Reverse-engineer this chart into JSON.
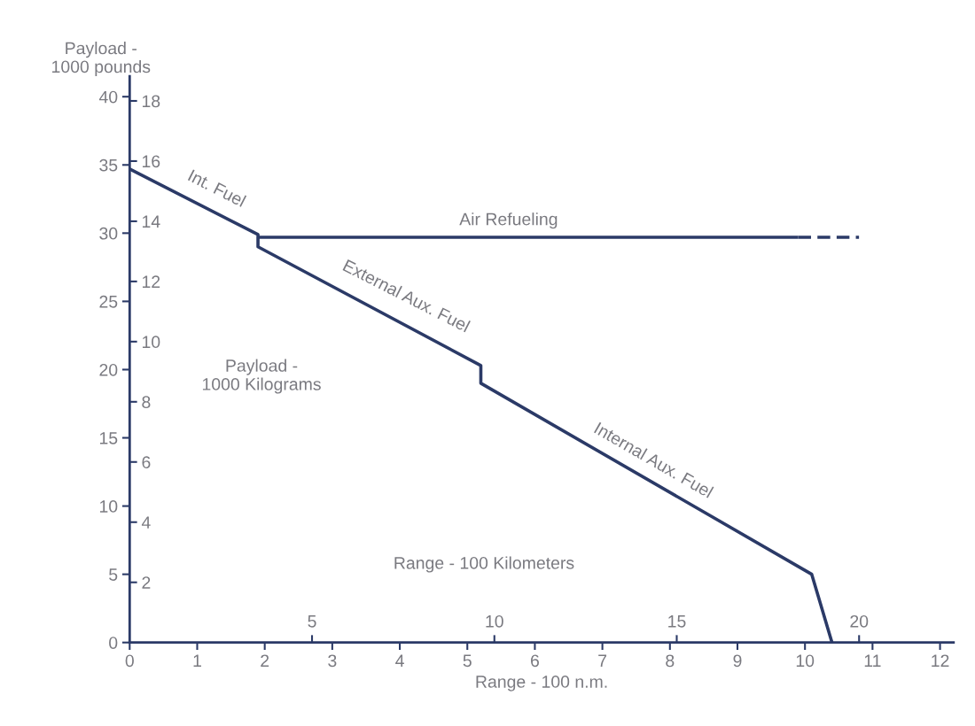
{
  "chart_data": {
    "type": "line",
    "xlabel": "Range - 100 n.m.",
    "ylabel": "Payload -\n1000 pounds",
    "y2label": "Payload -\n1000 Kilograms",
    "x2label": "Range - 100 Kilometers",
    "xlim": [
      0,
      12.2
    ],
    "xticks": [
      0,
      1,
      2,
      3,
      4,
      5,
      6,
      7,
      8,
      9,
      10,
      11,
      12
    ],
    "ylim": [
      0,
      41.5
    ],
    "yticks": [
      0,
      5,
      10,
      15,
      20,
      25,
      30,
      35,
      40
    ],
    "y2lim": [
      0,
      18.82
    ],
    "y2ticks": [
      2,
      4,
      6,
      8,
      10,
      12,
      14,
      16,
      18
    ],
    "x2lim": [
      0,
      22.59
    ],
    "x2ticks": [
      5,
      10,
      15,
      20
    ],
    "grid": false,
    "marker": "none",
    "series": [
      {
        "color": "#2b3a67",
        "x": [
          0,
          1.9,
          1.9,
          5.2,
          5.2,
          10.1,
          10.4
        ],
        "values": [
          34.7,
          29.9,
          29.0,
          20.3,
          19.0,
          5.0,
          0
        ],
        "line_style": "solid"
      },
      {
        "color": "#2b3a67",
        "x": [
          1.9,
          9.9
        ],
        "values": [
          29.7,
          29.7
        ],
        "line_style": "solid"
      },
      {
        "color": "#2b3a67",
        "x": [
          9.9,
          10.8
        ],
        "values": [
          29.7,
          29.7
        ],
        "line_style": "dashed"
      }
    ],
    "annotations": [
      "Int. Fuel",
      "Air Refueling",
      "External Aux. Fuel",
      "Internal Aux. Fuel"
    ]
  }
}
